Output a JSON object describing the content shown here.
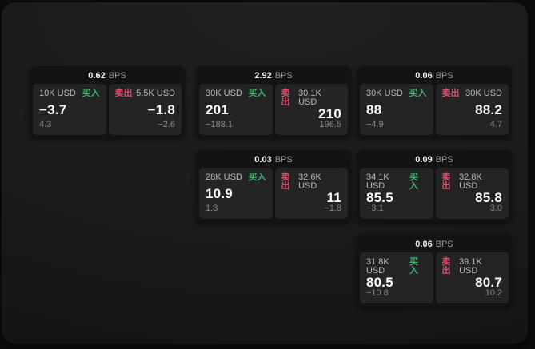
{
  "labels": {
    "bps_unit": "BPS",
    "buy": "买入",
    "sell": "卖出"
  },
  "colors": {
    "buy_green": "#3fae6e",
    "sell_red": "#d8506b",
    "panel_bg": "#1b1b1c",
    "card_bg": "#131314",
    "tile_bg": "#242425"
  },
  "cards": [
    {
      "col": 0,
      "row": 0,
      "bps": "0.62",
      "buy": {
        "amount": "10K USD",
        "value": "−3.7",
        "delta": "4.3"
      },
      "sell": {
        "amount": "5.5K USD",
        "value": "−1.8",
        "delta": "−2.6"
      }
    },
    {
      "col": 1,
      "row": 0,
      "bps": "2.92",
      "buy": {
        "amount": "30K USD",
        "value": "201",
        "delta": "−188.1"
      },
      "sell": {
        "amount": "30.1K USD",
        "value": "210",
        "delta": "196.5"
      }
    },
    {
      "col": 2,
      "row": 0,
      "bps": "0.06",
      "buy": {
        "amount": "30K USD",
        "value": "88",
        "delta": "−4.9"
      },
      "sell": {
        "amount": "30K USD",
        "value": "88.2",
        "delta": "4.7"
      }
    },
    {
      "col": 1,
      "row": 1,
      "bps": "0.03",
      "buy": {
        "amount": "28K USD",
        "value": "10.9",
        "delta": "1.3"
      },
      "sell": {
        "amount": "32.6K USD",
        "value": "11",
        "delta": "−1.8"
      }
    },
    {
      "col": 2,
      "row": 1,
      "bps": "0.09",
      "buy": {
        "amount": "34.1K USD",
        "value": "85.5",
        "delta": "−3.1"
      },
      "sell": {
        "amount": "32.8K USD",
        "value": "85.8",
        "delta": "3.0"
      }
    },
    {
      "col": 2,
      "row": 2,
      "bps": "0.06",
      "buy": {
        "amount": "31.8K USD",
        "value": "80.5",
        "delta": "−10.8"
      },
      "sell": {
        "amount": "39.1K USD",
        "value": "80.7",
        "delta": "10.2"
      }
    }
  ]
}
